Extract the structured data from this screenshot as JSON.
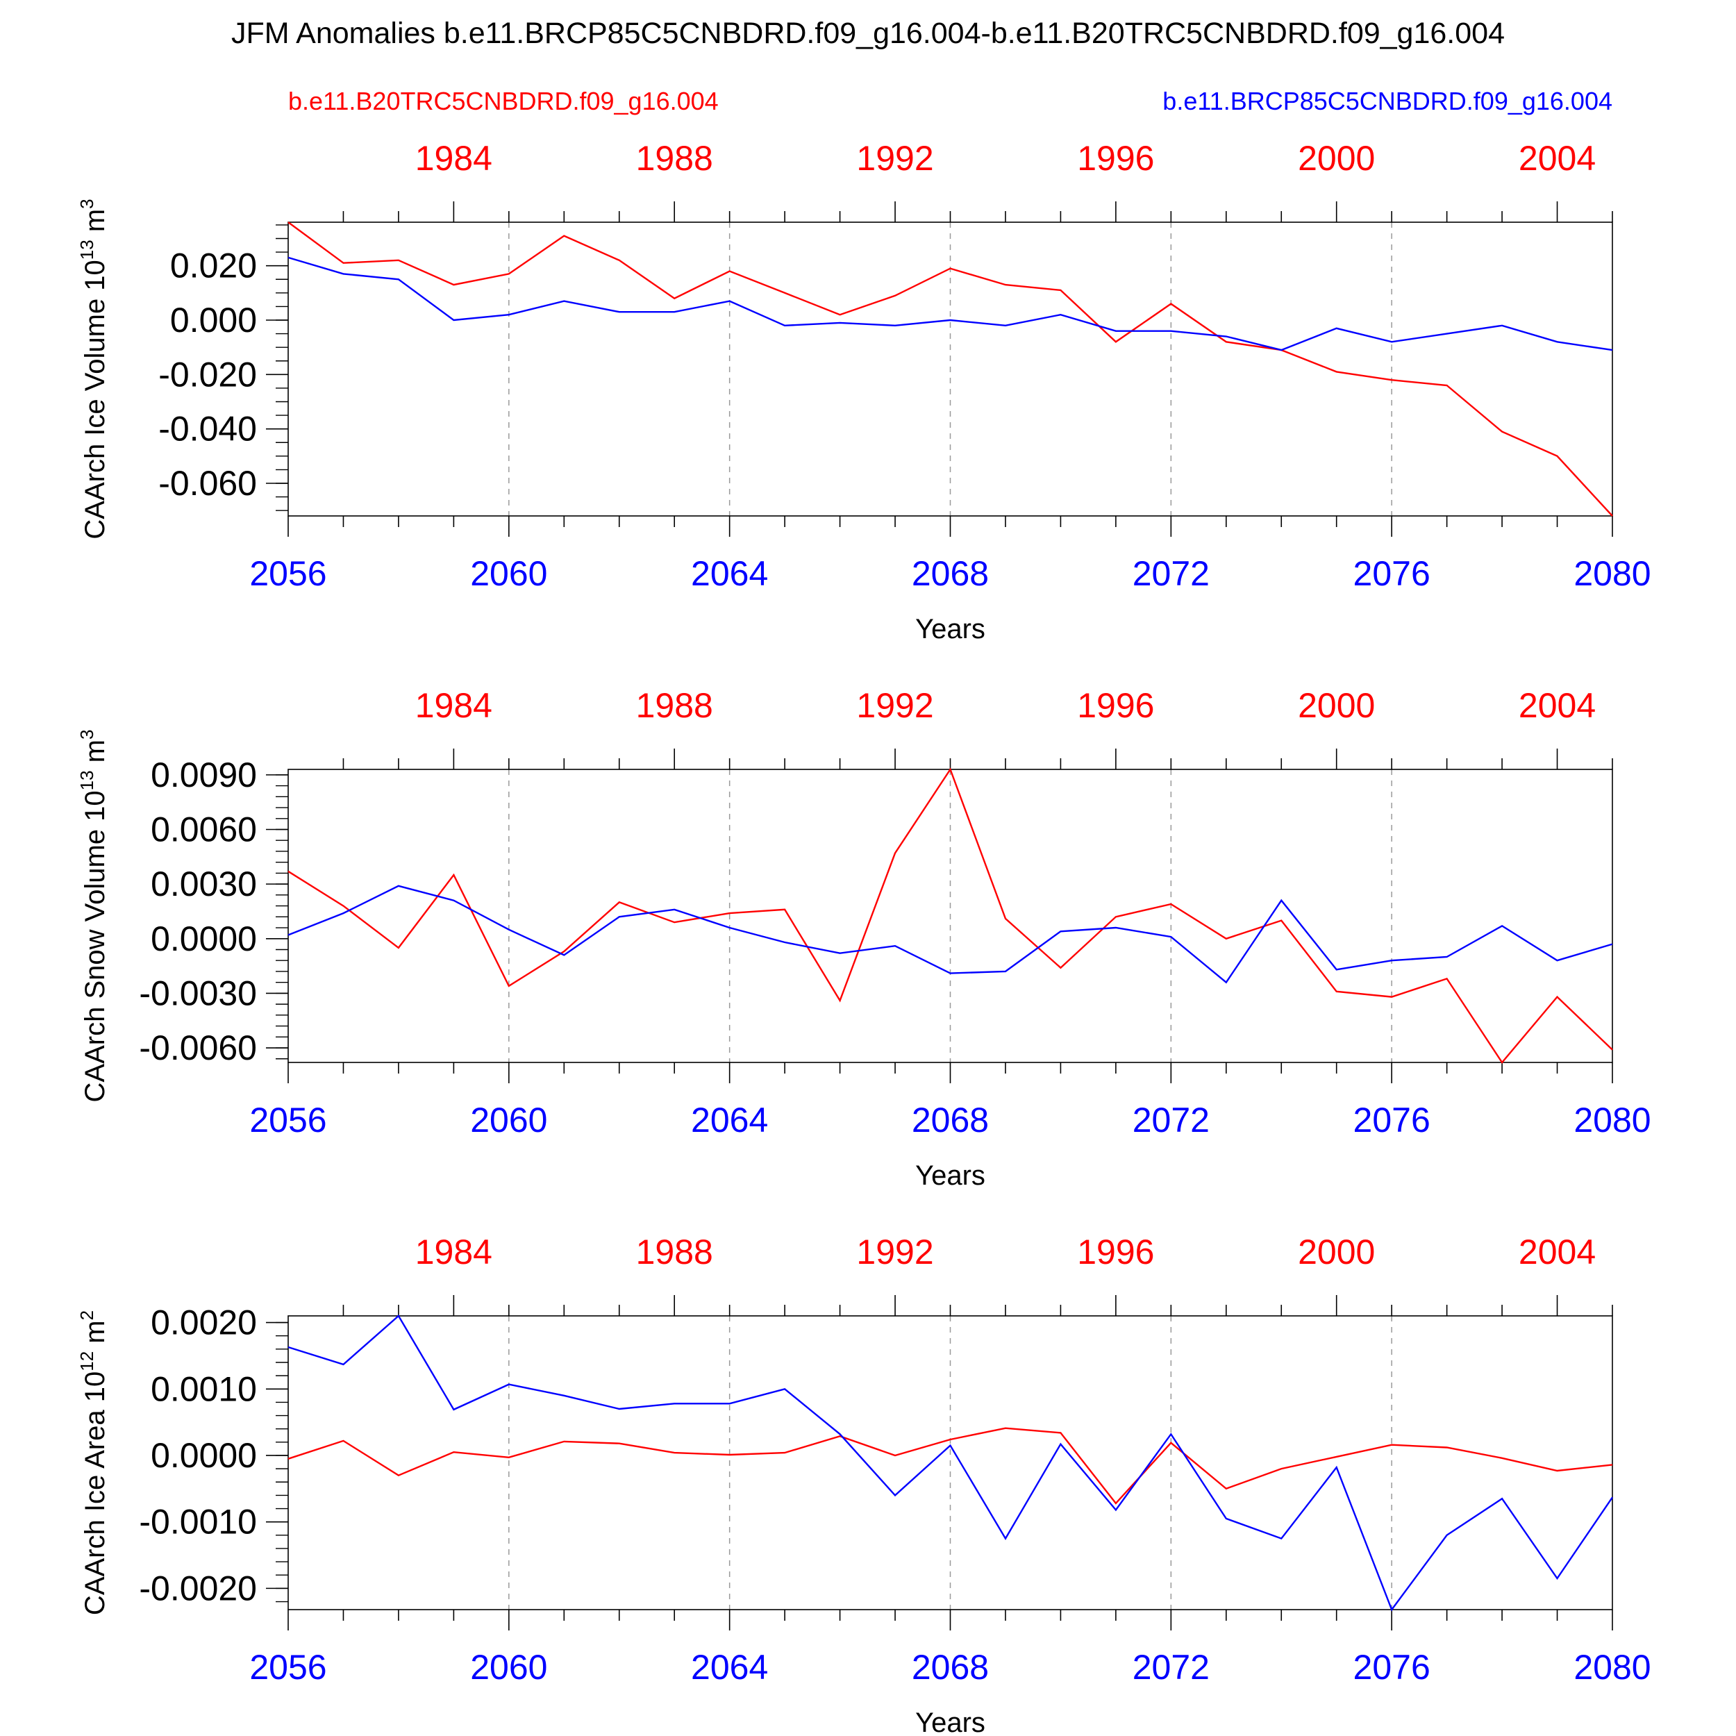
{
  "title": "JFM Anomalies b.e11.BRCP85C5CNBDRD.f09_g16.004-b.e11.B20TRC5CNBDRD.f09_g16.004",
  "legend": {
    "red_label": "b.e11.B20TRC5CNBDRD.f09_g16.004",
    "blue_label": "b.e11.BRCP85C5CNBDRD.f09_g16.004"
  },
  "colors": {
    "red": "#ff0000",
    "blue": "#0000ff",
    "axis": "#000000",
    "grid": "#999999"
  },
  "chart_data": [
    {
      "type": "line",
      "panel": "ice-volume",
      "ylabel_main": "CAArch Ice Volume 10",
      "ylabel_exp": "13",
      "ylabel_unit": " m",
      "ylabel_unit_exp": "3",
      "xlabel": "Years",
      "x": [
        2056,
        2057,
        2058,
        2059,
        2060,
        2061,
        2062,
        2063,
        2064,
        2065,
        2066,
        2067,
        2068,
        2069,
        2070,
        2071,
        2072,
        2073,
        2074,
        2075,
        2076,
        2077,
        2078,
        2079,
        2080
      ],
      "xlim": [
        2056,
        2080
      ],
      "ylim": [
        -0.072,
        0.036
      ],
      "yticks": [
        -0.06,
        -0.04,
        -0.02,
        0.0,
        0.02
      ],
      "ytick_labels": [
        "-0.060",
        "-0.040",
        "-0.020",
        "0.000",
        "0.020"
      ],
      "yminor": 0.005,
      "series": [
        {
          "name": "b.e11.B20TRC5CNBDRD.f09_g16.004",
          "color": "red",
          "values": [
            0.036,
            0.021,
            0.022,
            0.013,
            0.017,
            0.031,
            0.022,
            0.008,
            0.018,
            0.01,
            0.002,
            0.009,
            0.019,
            0.013,
            0.011,
            -0.008,
            0.006,
            -0.008,
            -0.011,
            -0.019,
            -0.022,
            -0.024,
            -0.041,
            -0.05,
            -0.072
          ]
        },
        {
          "name": "b.e11.BRCP85C5CNBDRD.f09_g16.004",
          "color": "blue",
          "values": [
            0.023,
            0.017,
            0.015,
            0.0,
            0.002,
            0.007,
            0.003,
            0.003,
            0.007,
            -0.002,
            -0.001,
            -0.002,
            0.0,
            -0.002,
            0.002,
            -0.004,
            -0.004,
            -0.006,
            -0.011,
            -0.003,
            -0.008,
            -0.005,
            -0.002,
            -0.008,
            -0.011
          ]
        }
      ]
    },
    {
      "type": "line",
      "panel": "snow-volume",
      "ylabel_main": "CAArch Snow Volume 10",
      "ylabel_exp": "13",
      "ylabel_unit": " m",
      "ylabel_unit_exp": "3",
      "xlabel": "Years",
      "x": [
        2056,
        2057,
        2058,
        2059,
        2060,
        2061,
        2062,
        2063,
        2064,
        2065,
        2066,
        2067,
        2068,
        2069,
        2070,
        2071,
        2072,
        2073,
        2074,
        2075,
        2076,
        2077,
        2078,
        2079,
        2080
      ],
      "xlim": [
        2056,
        2080
      ],
      "ylim": [
        -0.0068,
        0.0093
      ],
      "yticks": [
        -0.006,
        -0.003,
        0.0,
        0.003,
        0.006,
        0.009
      ],
      "ytick_labels": [
        "-0.0060",
        "-0.0030",
        "0.0000",
        "0.0030",
        "0.0060",
        "0.0090"
      ],
      "yminor": 0.0006,
      "series": [
        {
          "name": "b.e11.B20TRC5CNBDRD.f09_g16.004",
          "color": "red",
          "values": [
            0.0037,
            0.0018,
            -0.0005,
            0.0035,
            -0.0026,
            -0.0007,
            0.002,
            0.0009,
            0.0014,
            0.0016,
            -0.0034,
            0.0047,
            0.0093,
            0.0011,
            -0.0016,
            0.0012,
            0.0019,
            0.0,
            0.001,
            -0.0029,
            -0.0032,
            -0.0022,
            -0.0068,
            -0.0032,
            -0.0061
          ]
        },
        {
          "name": "b.e11.BRCP85C5CNBDRD.f09_g16.004",
          "color": "blue",
          "values": [
            0.0002,
            0.0014,
            0.0029,
            0.0021,
            0.0005,
            -0.0009,
            0.0012,
            0.0016,
            0.0006,
            -0.0002,
            -0.0008,
            -0.0004,
            -0.0019,
            -0.0018,
            0.0004,
            0.0006,
            0.0001,
            -0.0024,
            0.0021,
            -0.0017,
            -0.0012,
            -0.001,
            0.0007,
            -0.0012,
            -0.0003
          ]
        }
      ]
    },
    {
      "type": "line",
      "panel": "ice-area",
      "ylabel_main": "CAArch Ice Area 10",
      "ylabel_exp": "12",
      "ylabel_unit": " m",
      "ylabel_unit_exp": "2",
      "xlabel": "Years",
      "x": [
        2056,
        2057,
        2058,
        2059,
        2060,
        2061,
        2062,
        2063,
        2064,
        2065,
        2066,
        2067,
        2068,
        2069,
        2070,
        2071,
        2072,
        2073,
        2074,
        2075,
        2076,
        2077,
        2078,
        2079,
        2080
      ],
      "xlim": [
        2056,
        2080
      ],
      "ylim": [
        -0.00232,
        0.0021
      ],
      "yticks": [
        -0.002,
        -0.001,
        0.0,
        0.001,
        0.002
      ],
      "ytick_labels": [
        "-0.0020",
        "-0.0010",
        "0.0000",
        "0.0010",
        "0.0020"
      ],
      "yminor": 0.0002,
      "series": [
        {
          "name": "b.e11.B20TRC5CNBDRD.f09_g16.004",
          "color": "red",
          "values": [
            -5e-05,
            0.00022,
            -0.0003,
            5e-05,
            -3e-05,
            0.00021,
            0.00018,
            4e-05,
            1e-05,
            4e-05,
            0.00029,
            0.0,
            0.00024,
            0.00041,
            0.00034,
            -0.00072,
            0.00019,
            -0.0005,
            -0.0002,
            -2e-05,
            0.00016,
            0.00012,
            -4e-05,
            -0.00023,
            -0.00014
          ]
        },
        {
          "name": "b.e11.BRCP85C5CNBDRD.f09_g16.004",
          "color": "blue",
          "values": [
            0.00163,
            0.00137,
            0.0021,
            0.00069,
            0.00107,
            0.0009,
            0.0007,
            0.00078,
            0.00078,
            0.001,
            0.00032,
            -0.0006,
            0.00015,
            -0.00125,
            0.00017,
            -0.00082,
            0.00032,
            -0.00095,
            -0.00125,
            -0.00018,
            -0.00232,
            -0.0012,
            -0.00065,
            -0.00185,
            -0.00063
          ]
        }
      ]
    }
  ],
  "top_axis": {
    "labels": [
      "1984",
      "1988",
      "1992",
      "1996",
      "2000",
      "2004"
    ],
    "positions": [
      2059,
      2063,
      2067,
      2071,
      2075,
      2079
    ]
  },
  "bottom_axis": {
    "labels": [
      "2056",
      "2060",
      "2064",
      "2068",
      "2072",
      "2076",
      "2080"
    ],
    "positions": [
      2056,
      2060,
      2064,
      2068,
      2072,
      2076,
      2080
    ]
  }
}
